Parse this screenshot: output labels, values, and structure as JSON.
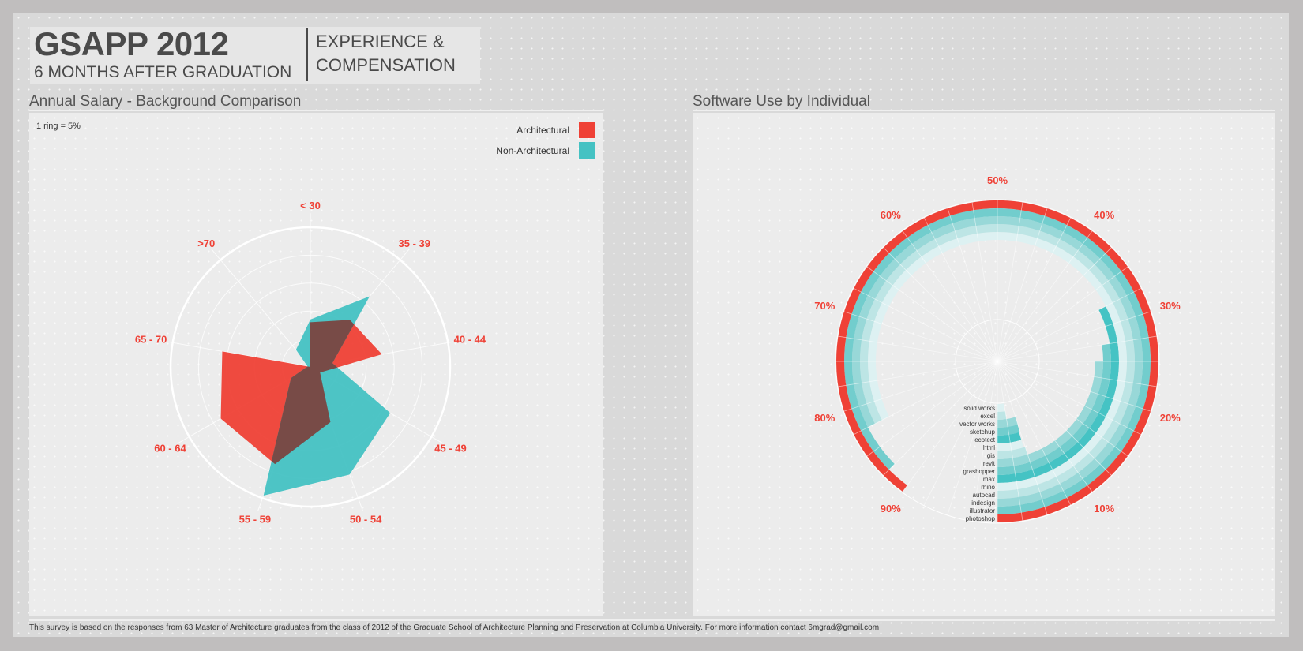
{
  "header": {
    "title": "GSAPP 2012",
    "subtitle": "6 MONTHS AFTER GRADUATION",
    "topic_line1": "EXPERIENCE &",
    "topic_line2": "COMPENSATION"
  },
  "colors": {
    "architectural": "#ef4136",
    "non_architectural": "#45c2c3",
    "overlap": "#7a4440",
    "label_red": "#ef4136"
  },
  "footer": "This survey is  based on the responses from 63 Master of Architecture graduates from the class of 2012 of the Graduate School of Architecture Planning and Preservation at Columbia University. For more information contact  6mgrad@gmail.com",
  "chart_data": [
    {
      "type": "radar",
      "title": "Annual Salary - Background Comparison",
      "note": "1 ring = 5%",
      "unit": "%",
      "ring_step": 5,
      "rings": 5,
      "range": [
        0,
        25
      ],
      "legend_placement": "top-right",
      "categories": [
        "< 30",
        "35 - 39",
        "40 - 44",
        "45 - 49",
        "50 - 54",
        "55 - 59",
        "60 - 64",
        "65 - 70",
        ">70"
      ],
      "series": [
        {
          "name": "Architectural",
          "color": "#ef4136",
          "values": [
            8,
            11,
            13,
            2,
            10.5,
            18.5,
            18.5,
            16,
            0
          ]
        },
        {
          "name": "Non-Architectural",
          "color": "#45c2c3",
          "values": [
            8.5,
            16.5,
            4,
            16.5,
            20.5,
            24.5,
            4,
            0.5,
            4
          ]
        }
      ]
    },
    {
      "type": "radial-bar",
      "title": "Software Use by Individual",
      "unit": "%",
      "range": [
        0,
        100
      ],
      "tick_labels": [
        "10%",
        "20%",
        "30%",
        "40%",
        "50%",
        "60%",
        "70%",
        "80%",
        "90%"
      ],
      "ticks": [
        10,
        20,
        30,
        40,
        50,
        60,
        70,
        80,
        90
      ],
      "categories": [
        "solid works",
        "excel",
        "vector works",
        "sketchup",
        "ecotect",
        "html",
        "gis",
        "revit",
        "grashopper",
        "max",
        "rhino",
        "autocad",
        "indesign",
        "illustrator",
        "photoshop"
      ],
      "values": [
        2.4,
        2.5,
        5,
        4.9,
        4.7,
        4.7,
        5,
        25,
        27.5,
        32.5,
        82.5,
        82.5,
        82.5,
        87.5,
        90
      ],
      "colors": [
        "#ddf1f2",
        "#bde5e5",
        "#98d8d8",
        "#72cdcd",
        "#45c3c4",
        "#ddf1f2",
        "#bde5e5",
        "#98d8d8",
        "#72cdcd",
        "#45c3c4",
        "#ddf1f2",
        "#bde5e5",
        "#98d8d8",
        "#72cdcd",
        "#ef4136"
      ]
    }
  ]
}
